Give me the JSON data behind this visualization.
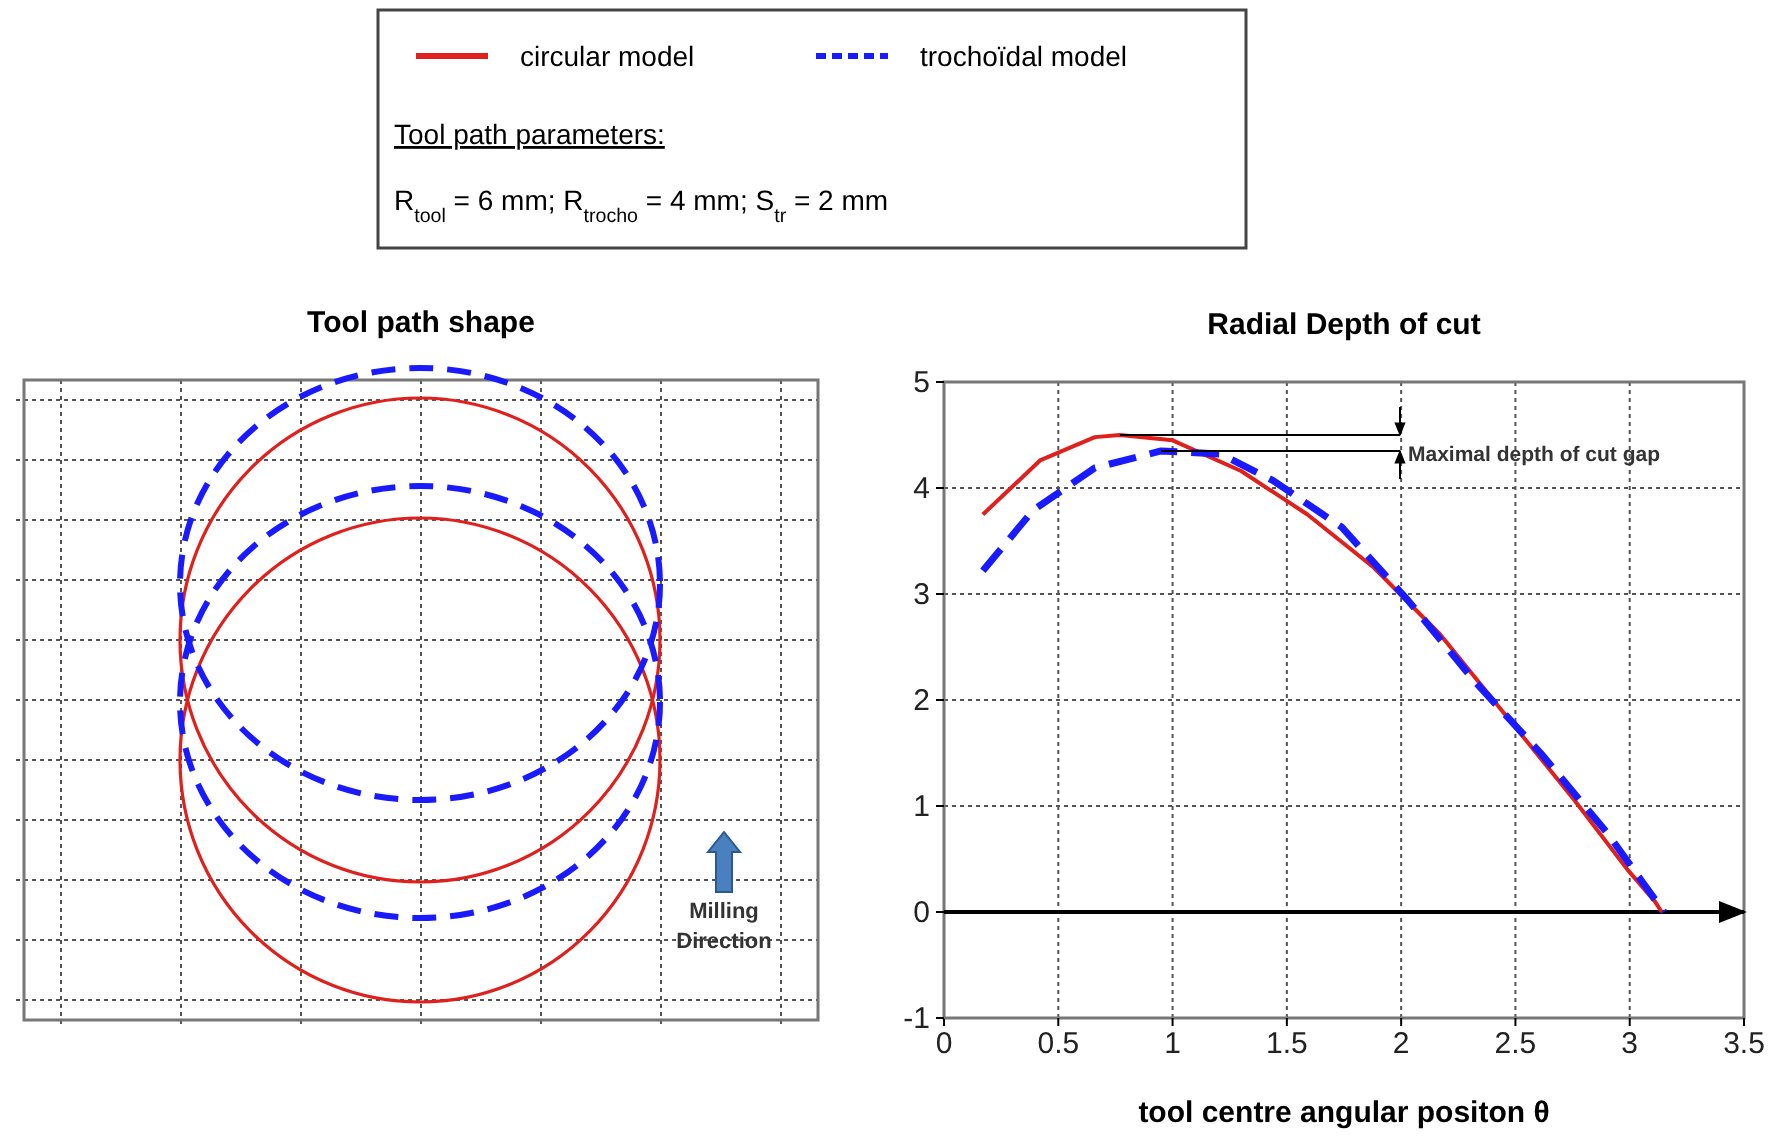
{
  "chart_data": [
    {
      "type": "other",
      "title": "Tool path shape",
      "annotations": [
        "Milling Direction"
      ]
    },
    {
      "type": "line",
      "title": "Radial Depth of cut",
      "xlabel": "tool centre angular positon θ",
      "grid": true,
      "legend": "top",
      "xlim": [
        0,
        3.5
      ],
      "ylim": [
        -1,
        5
      ],
      "xticks": [
        0,
        0.5,
        1,
        1.5,
        2,
        2.5,
        3,
        3.5
      ],
      "yticks": [
        -1,
        0,
        1,
        2,
        3,
        4,
        5
      ],
      "ref_lines": [
        {
          "axis": "y",
          "value": 0,
          "color": "#000000"
        }
      ],
      "series": [
        {
          "name": "circular model",
          "color": "#e0201c",
          "line_style": "solid",
          "x": [
            0.17,
            0.42,
            0.66,
            0.77,
            1.0,
            1.3,
            1.59,
            1.88,
            2.17,
            2.46,
            2.76,
            2.99,
            3.11,
            3.14
          ],
          "values": [
            3.75,
            4.26,
            4.48,
            4.5,
            4.45,
            4.16,
            3.75,
            3.25,
            2.62,
            1.85,
            1.05,
            0.4,
            0.1,
            0
          ]
        },
        {
          "name": "trochoïdal model",
          "color": "#1a1aff",
          "line_style": "dashed",
          "x": [
            0.17,
            0.39,
            0.66,
            0.95,
            1.21,
            1.44,
            1.74,
            2.03,
            2.32,
            2.61,
            2.9,
            3.05,
            3.15
          ],
          "values": [
            3.22,
            3.79,
            4.19,
            4.35,
            4.32,
            4.07,
            3.63,
            2.94,
            2.18,
            1.5,
            0.75,
            0.3,
            0
          ]
        }
      ],
      "annotations": [
        {
          "text": "Maximal depth of cut gap",
          "x": 0.77,
          "y": 4.5
        },
        "Tool path parameters:",
        "R$_{tool}$ = 6 mm; R$_{trocho}$ = 4 mm; S$_{tr}$ = 2 mm"
      ]
    }
  ]
}
